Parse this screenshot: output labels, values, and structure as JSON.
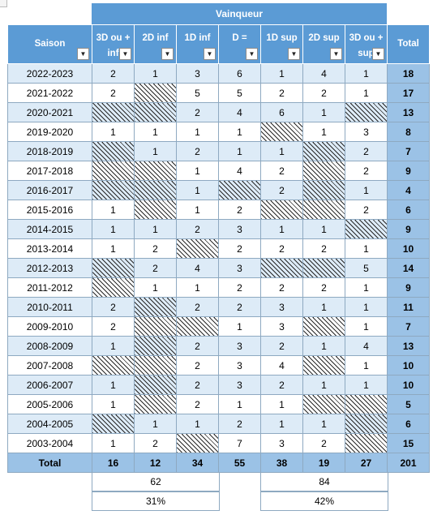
{
  "banner": {
    "label": "Vainqueur"
  },
  "columns": [
    {
      "label": "Saison",
      "filter": true
    },
    {
      "label": "3D ou +\ninf",
      "filter": true
    },
    {
      "label": "2D inf",
      "filter": true
    },
    {
      "label": "1D inf",
      "filter": true
    },
    {
      "label": "D =",
      "filter": true
    },
    {
      "label": "1D sup",
      "filter": true
    },
    {
      "label": "2D sup",
      "filter": true
    },
    {
      "label": "3D ou +\nsup",
      "filter": true
    },
    {
      "label": "Total",
      "filter": false
    }
  ],
  "rows": [
    {
      "season": "2022-2023",
      "cells": [
        "2",
        "1",
        "3",
        "6",
        "1",
        "4",
        "1"
      ],
      "total": "18"
    },
    {
      "season": "2021-2022",
      "cells": [
        "2",
        "",
        "5",
        "5",
        "2",
        "2",
        "1"
      ],
      "total": "17"
    },
    {
      "season": "2020-2021",
      "cells": [
        "",
        "",
        "2",
        "4",
        "6",
        "1",
        ""
      ],
      "total": "13"
    },
    {
      "season": "2019-2020",
      "cells": [
        "1",
        "1",
        "1",
        "1",
        "",
        "1",
        "3"
      ],
      "total": "8"
    },
    {
      "season": "2018-2019",
      "cells": [
        "",
        "1",
        "2",
        "1",
        "1",
        "",
        "2"
      ],
      "total": "7"
    },
    {
      "season": "2017-2018",
      "cells": [
        "",
        "",
        "1",
        "4",
        "2",
        "",
        "2"
      ],
      "total": "9"
    },
    {
      "season": "2016-2017",
      "cells": [
        "",
        "",
        "1",
        "",
        "2",
        "",
        "1"
      ],
      "total": "4"
    },
    {
      "season": "2015-2016",
      "cells": [
        "1",
        "",
        "1",
        "2",
        "",
        "",
        "2"
      ],
      "total": "6"
    },
    {
      "season": "2014-2015",
      "cells": [
        "1",
        "1",
        "2",
        "3",
        "1",
        "1",
        ""
      ],
      "total": "9"
    },
    {
      "season": "2013-2014",
      "cells": [
        "1",
        "2",
        "",
        "2",
        "2",
        "2",
        "1"
      ],
      "total": "10"
    },
    {
      "season": "2012-2013",
      "cells": [
        "",
        "2",
        "4",
        "3",
        "",
        "",
        "5"
      ],
      "total": "14"
    },
    {
      "season": "2011-2012",
      "cells": [
        "",
        "1",
        "1",
        "2",
        "2",
        "2",
        "1"
      ],
      "total": "9"
    },
    {
      "season": "2010-2011",
      "cells": [
        "2",
        "",
        "2",
        "2",
        "3",
        "1",
        "1"
      ],
      "total": "11"
    },
    {
      "season": "2009-2010",
      "cells": [
        "2",
        "",
        "",
        "1",
        "3",
        "",
        "1"
      ],
      "total": "7"
    },
    {
      "season": "2008-2009",
      "cells": [
        "1",
        "",
        "2",
        "3",
        "2",
        "1",
        "4"
      ],
      "total": "13"
    },
    {
      "season": "2007-2008",
      "cells": [
        "",
        "",
        "2",
        "3",
        "4",
        "",
        "1"
      ],
      "total": "10"
    },
    {
      "season": "2006-2007",
      "cells": [
        "1",
        "",
        "2",
        "3",
        "2",
        "1",
        "1"
      ],
      "total": "10"
    },
    {
      "season": "2005-2006",
      "cells": [
        "1",
        "",
        "2",
        "1",
        "1",
        "",
        ""
      ],
      "total": "5"
    },
    {
      "season": "2004-2005",
      "cells": [
        "",
        "1",
        "1",
        "2",
        "1",
        "1",
        ""
      ],
      "total": "6"
    },
    {
      "season": "2003-2004",
      "cells": [
        "1",
        "2",
        "",
        "7",
        "3",
        "2",
        ""
      ],
      "total": "15"
    }
  ],
  "totals": {
    "label": "Total",
    "cells": [
      "16",
      "12",
      "34",
      "55",
      "38",
      "19",
      "27"
    ],
    "total": "201"
  },
  "summary": {
    "inf_count": "62",
    "inf_pct": "31%",
    "sup_count": "84",
    "sup_pct": "42%"
  },
  "colors": {
    "header": "#5b9bd5",
    "band": "#ddebf7",
    "total": "#9bc2e6"
  },
  "icons": {
    "filter": "filter-dropdown-icon"
  }
}
